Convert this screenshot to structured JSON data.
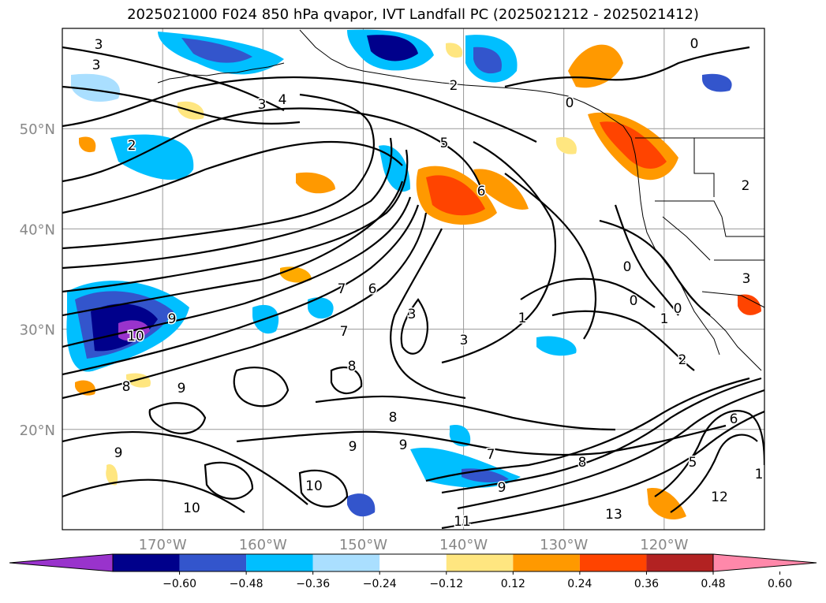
{
  "title": "2025021000 F024 850 hPa qvapor, IVT Landfall PC (2025021212 - 2025021412)",
  "map": {
    "lon_range": [
      -180,
      -110
    ],
    "lat_range": [
      10,
      60
    ],
    "lat_ticks": [
      "20°N",
      "30°N",
      "40°N",
      "50°N"
    ],
    "lon_ticks": [
      "170°W",
      "160°W",
      "150°W",
      "140°W",
      "130°W",
      "120°W"
    ],
    "gridlines": true
  },
  "colorbar": {
    "ticks": [
      "−0.60",
      "−0.48",
      "−0.36",
      "−0.24",
      "−0.12",
      "0.12",
      "0.24",
      "0.36",
      "0.48",
      "0.60"
    ],
    "colors": [
      "#9933cc",
      "#00008b",
      "#3355cc",
      "#00bfff",
      "#aadfff",
      "#ffffff",
      "#ffe680",
      "#ff9900",
      "#ff4400",
      "#b22222",
      "#ff88aa"
    ],
    "extend": "both"
  },
  "contour_labels": [
    {
      "text": "3"
    },
    {
      "text": "3"
    },
    {
      "text": "3"
    },
    {
      "text": "4"
    },
    {
      "text": "2"
    },
    {
      "text": "5"
    },
    {
      "text": "6"
    },
    {
      "text": "10"
    },
    {
      "text": "9"
    },
    {
      "text": "8"
    },
    {
      "text": "9"
    },
    {
      "text": "7"
    },
    {
      "text": "6"
    },
    {
      "text": "3"
    },
    {
      "text": "3"
    },
    {
      "text": "8"
    },
    {
      "text": "8"
    },
    {
      "text": "9"
    },
    {
      "text": "9"
    },
    {
      "text": "10"
    },
    {
      "text": "10"
    },
    {
      "text": "11"
    },
    {
      "text": "13"
    },
    {
      "text": "12"
    },
    {
      "text": "6"
    },
    {
      "text": "5"
    },
    {
      "text": "1"
    },
    {
      "text": "2"
    },
    {
      "text": "1"
    },
    {
      "text": "0"
    },
    {
      "text": "0"
    },
    {
      "text": "0"
    },
    {
      "text": "0"
    },
    {
      "text": "0"
    },
    {
      "text": "2"
    },
    {
      "text": "7"
    },
    {
      "text": "9"
    },
    {
      "text": "8"
    },
    {
      "text": "9"
    },
    {
      "text": "7"
    },
    {
      "text": "1"
    },
    {
      "text": "2"
    },
    {
      "text": "3"
    }
  ]
}
